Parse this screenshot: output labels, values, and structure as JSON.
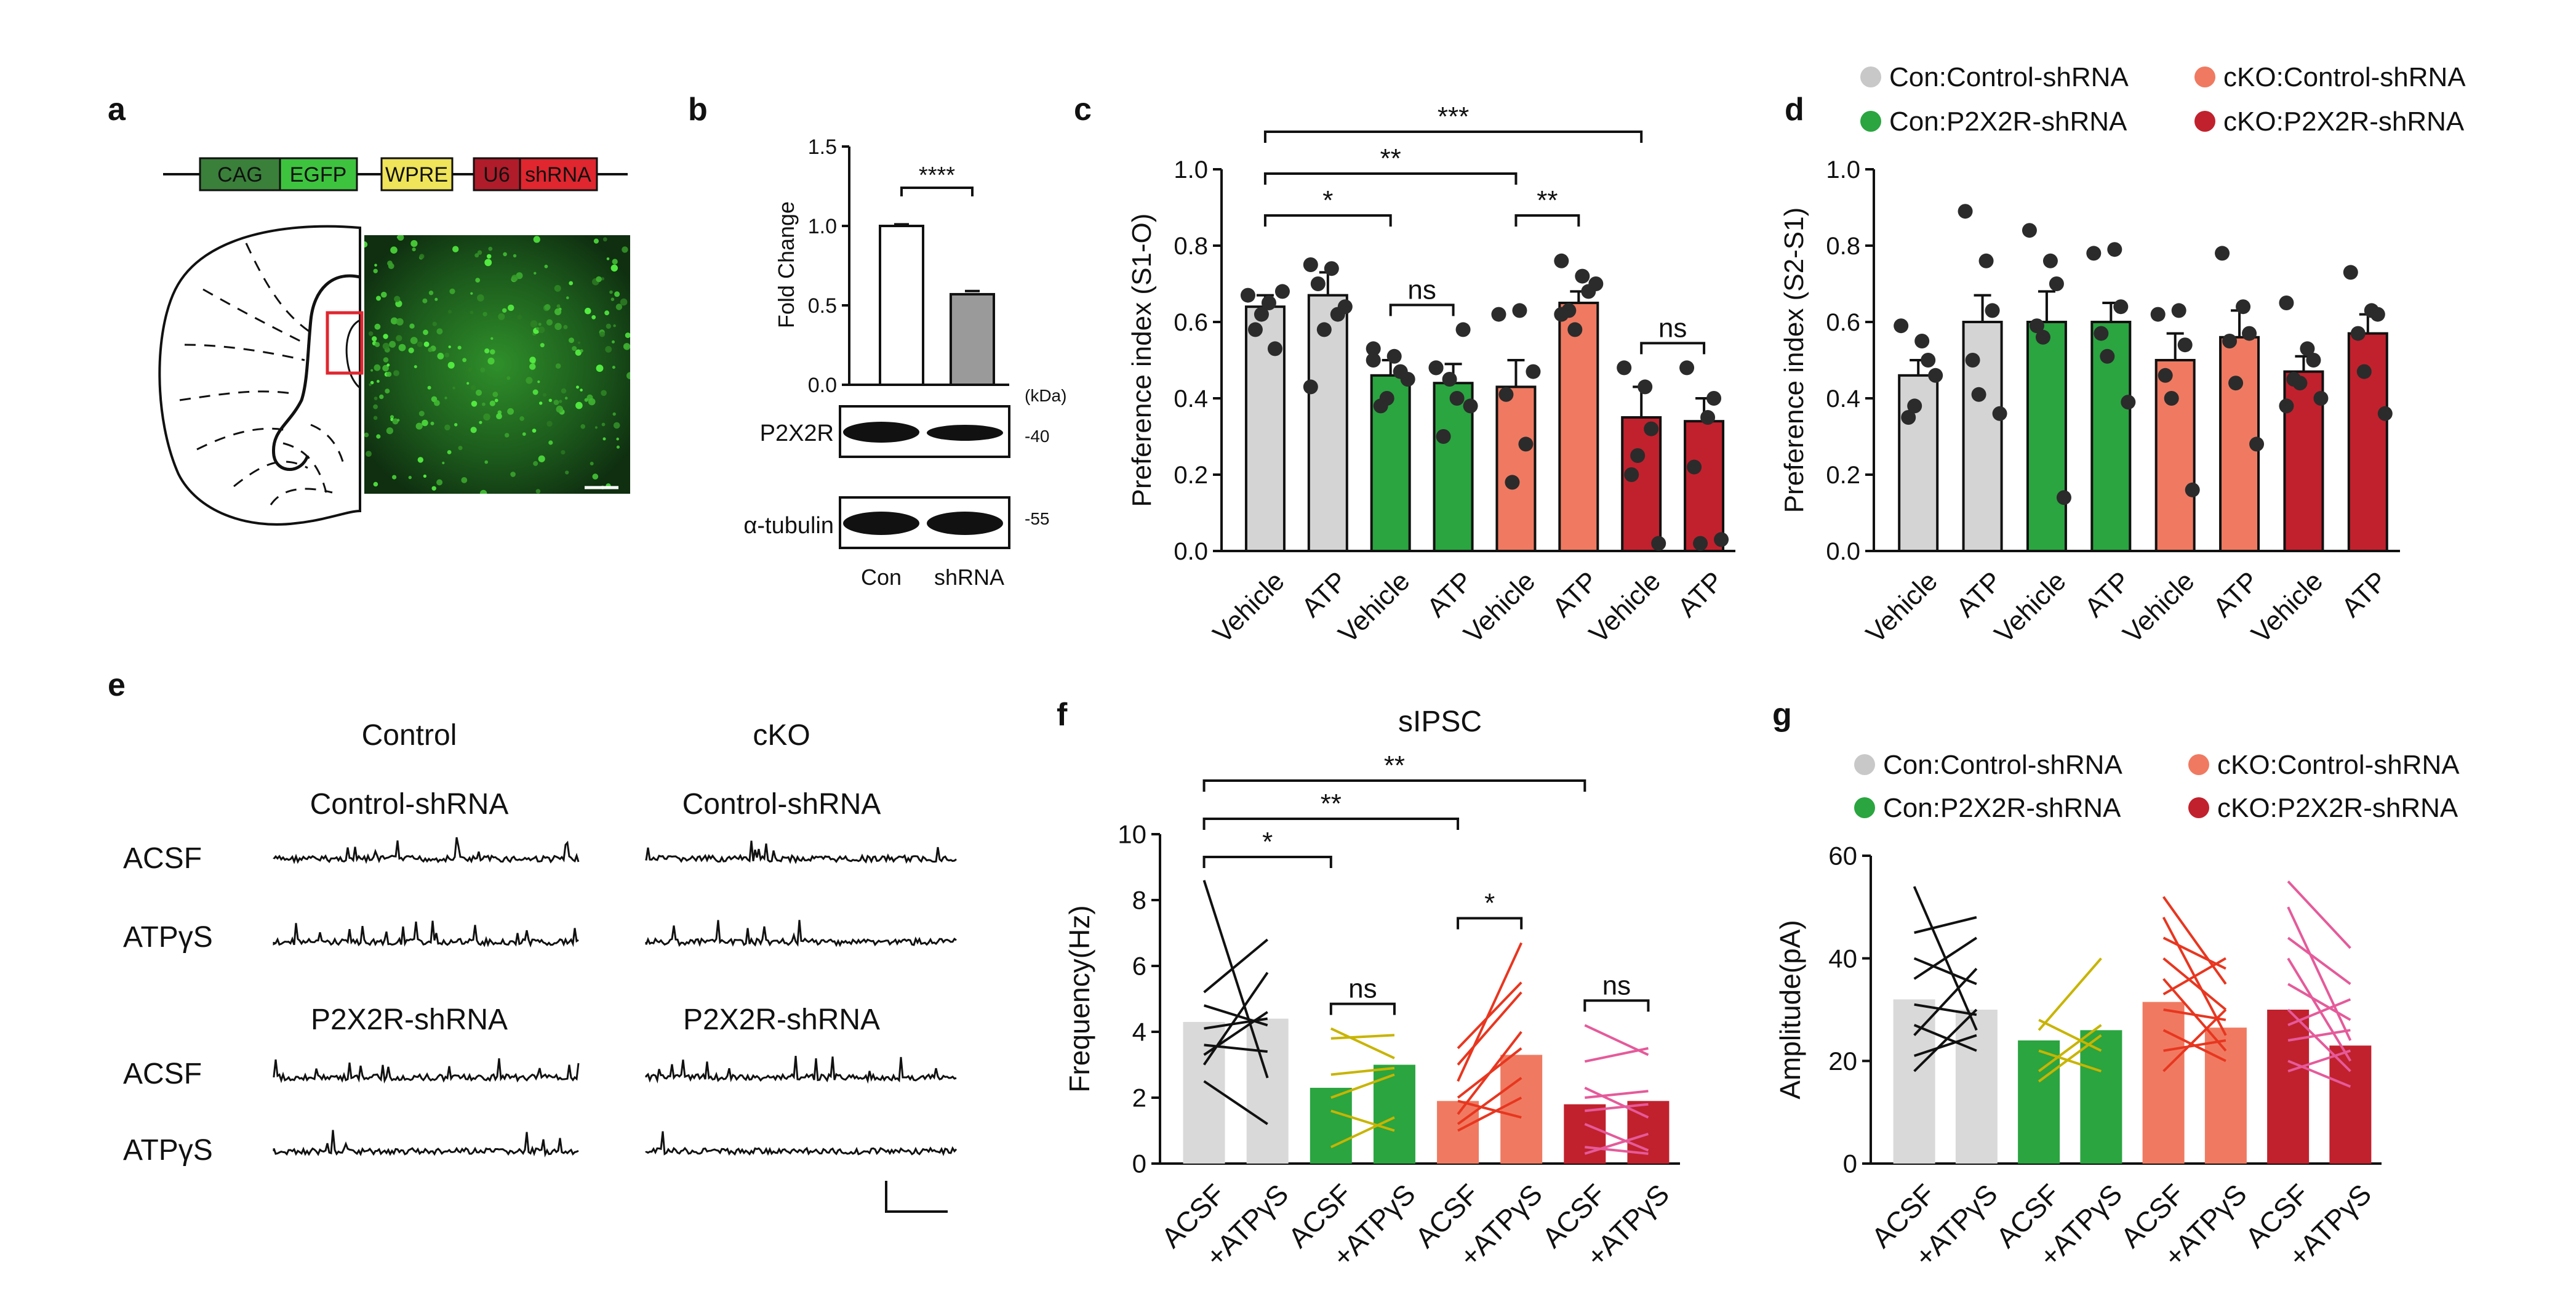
{
  "panel_labels": [
    "a",
    "b",
    "c",
    "d",
    "e",
    "f",
    "g"
  ],
  "colors": {
    "grey": "#d4d4d4",
    "green": "#2aa540",
    "salmon": "#ef7a61",
    "red": "#c1212d",
    "dot": "#2b2b2b",
    "egfp": "#3ec33e",
    "cag": "#3a7f3a",
    "wpre": "#efe45a",
    "u6": "#b01c2a",
    "shrna": "#e0262f"
  },
  "panel_a": {
    "constructs": [
      "CAG",
      "EGFP",
      "WPRE",
      "U6",
      "shRNA"
    ]
  },
  "panel_b": {
    "ylabel": "Fold Change",
    "yticks": [
      "1.5",
      "1.0",
      "0.5",
      "0.0"
    ],
    "significance": "****",
    "kda_label": "(kDa)",
    "bands": [
      {
        "label": "P2X2R",
        "kda": "-40"
      },
      {
        "label": "α-tubulin",
        "kda": "-55"
      }
    ],
    "xlabels": [
      "Con",
      "shRNA"
    ]
  },
  "legend_cd": [
    "Con:Control-shRNA",
    "Con:P2X2R-shRNA",
    "cKO:Control-shRNA",
    "cKO:P2X2R-shRNA"
  ],
  "legend_fg": [
    "Con:Control-shRNA",
    "Con:P2X2R-shRNA",
    "cKO:Control-shRNA",
    "cKO:P2X2R-shRNA"
  ],
  "panel_e": {
    "col_titles": [
      "Control",
      "cKO"
    ],
    "group_titles": [
      "Control-shRNA",
      "Control-shRNA",
      "P2X2R-shRNA",
      "P2X2R-shRNA"
    ],
    "row_labels": [
      "ACSF",
      "ATPγS",
      "ACSF",
      "ATPγS"
    ]
  },
  "chart_data": [
    {
      "id": "b",
      "type": "bar",
      "categories": [
        "Con",
        "shRNA"
      ],
      "values": [
        1.0,
        0.57
      ],
      "errors": [
        0.01,
        0.02
      ],
      "ylabel": "Fold Change",
      "ylim": [
        0,
        1.5
      ],
      "annotations": [
        "****"
      ]
    },
    {
      "id": "c",
      "type": "bar",
      "ylabel": "Preference index (S1-O)",
      "ylim": [
        0,
        1.0
      ],
      "yticks": [
        "0.0",
        "0.2",
        "0.4",
        "0.6",
        "0.8",
        "1.0"
      ],
      "categories": [
        "Vehicle",
        "ATP",
        "Vehicle",
        "ATP",
        "Vehicle",
        "ATP",
        "Vehicle",
        "ATP"
      ],
      "groups": [
        "Con:Control-shRNA",
        "Con:Control-shRNA",
        "Con:P2X2R-shRNA",
        "Con:P2X2R-shRNA",
        "cKO:Control-shRNA",
        "cKO:Control-shRNA",
        "cKO:P2X2R-shRNA",
        "cKO:P2X2R-shRNA"
      ],
      "values": [
        0.64,
        0.67,
        0.46,
        0.44,
        0.43,
        0.65,
        0.35,
        0.34
      ],
      "errors": [
        0.03,
        0.06,
        0.04,
        0.05,
        0.07,
        0.03,
        0.08,
        0.06
      ],
      "points": [
        [
          0.67,
          0.65,
          0.53,
          0.58,
          0.62,
          0.68
        ],
        [
          0.75,
          0.74,
          0.62,
          0.7,
          0.58,
          0.64,
          0.43
        ],
        [
          0.53,
          0.51,
          0.47,
          0.38,
          0.4,
          0.45,
          0.5
        ],
        [
          0.48,
          0.4,
          0.58,
          0.3,
          0.45,
          0.38,
          0.48
        ],
        [
          0.62,
          0.63,
          0.28,
          0.41,
          0.18,
          0.47
        ],
        [
          0.76,
          0.72,
          0.68,
          0.63,
          0.58,
          0.7,
          0.62
        ],
        [
          0.48,
          0.43,
          0.32,
          0.2,
          0.25,
          0.02
        ],
        [
          0.48,
          0.35,
          0.4,
          0.22,
          0.02,
          0.03
        ]
      ],
      "annotations": [
        {
          "text": "*",
          "from": 0,
          "to": 2,
          "level": 1
        },
        {
          "text": "**",
          "from": 0,
          "to": 4,
          "level": 2
        },
        {
          "text": "***",
          "from": 0,
          "to": 6,
          "level": 3
        },
        {
          "text": "ns",
          "from": 2,
          "to": 3,
          "level": 0
        },
        {
          "text": "**",
          "from": 4,
          "to": 5,
          "level": 1
        },
        {
          "text": "ns",
          "from": 6,
          "to": 7,
          "level": 0
        }
      ]
    },
    {
      "id": "d",
      "type": "bar",
      "ylabel": "Preference index (S2-S1)",
      "ylim": [
        0,
        1.0
      ],
      "yticks": [
        "0.0",
        "0.2",
        "0.4",
        "0.6",
        "0.8",
        "1.0"
      ],
      "categories": [
        "Vehicle",
        "ATP",
        "Vehicle",
        "ATP",
        "Vehicle",
        "ATP",
        "Vehicle",
        "ATP"
      ],
      "groups": [
        "Con:Control-shRNA",
        "Con:Control-shRNA",
        "Con:P2X2R-shRNA",
        "Con:P2X2R-shRNA",
        "cKO:Control-shRNA",
        "cKO:Control-shRNA",
        "cKO:P2X2R-shRNA",
        "cKO:P2X2R-shRNA"
      ],
      "values": [
        0.46,
        0.6,
        0.6,
        0.6,
        0.5,
        0.56,
        0.47,
        0.57
      ],
      "errors": [
        0.04,
        0.07,
        0.08,
        0.05,
        0.07,
        0.07,
        0.04,
        0.05
      ],
      "points": [
        [
          0.59,
          0.55,
          0.5,
          0.35,
          0.38,
          0.46
        ],
        [
          0.89,
          0.76,
          0.63,
          0.5,
          0.41,
          0.36
        ],
        [
          0.84,
          0.76,
          0.7,
          0.59,
          0.56,
          0.14
        ],
        [
          0.78,
          0.79,
          0.64,
          0.57,
          0.51,
          0.39
        ],
        [
          0.62,
          0.63,
          0.54,
          0.46,
          0.4,
          0.16
        ],
        [
          0.78,
          0.64,
          0.57,
          0.55,
          0.44,
          0.28
        ],
        [
          0.65,
          0.53,
          0.5,
          0.45,
          0.44,
          0.4,
          0.38
        ],
        [
          0.73,
          0.63,
          0.62,
          0.57,
          0.47,
          0.36
        ]
      ],
      "annotations": []
    },
    {
      "id": "f",
      "type": "bar",
      "title": "sIPSC",
      "ylabel": "Frequency(Hz)",
      "ylim": [
        0,
        10
      ],
      "yticks": [
        "0",
        "2",
        "4",
        "6",
        "8",
        "10"
      ],
      "categories": [
        "ACSF",
        "+ATPγS",
        "ACSF",
        "+ATPγS",
        "ACSF",
        "+ATPγS",
        "ACSF",
        "+ATPγS"
      ],
      "groups": [
        "Con:Control-shRNA",
        "Con:Control-shRNA",
        "Con:P2X2R-shRNA",
        "Con:P2X2R-shRNA",
        "cKO:Control-shRNA",
        "cKO:Control-shRNA",
        "cKO:P2X2R-shRNA",
        "cKO:P2X2R-shRNA"
      ],
      "values": [
        4.3,
        4.4,
        2.3,
        3.0,
        1.9,
        3.3,
        1.8,
        1.9
      ],
      "paired_lines": [
        [
          [
            8.6,
            2.6
          ],
          [
            5.2,
            6.8
          ],
          [
            4.1,
            4.4
          ],
          [
            3.6,
            3.4
          ],
          [
            3.0,
            5.8
          ],
          [
            2.5,
            1.2
          ],
          [
            4.8,
            4.2
          ],
          [
            3.3,
            4.6
          ]
        ],
        [
          [
            4.1,
            3.2
          ],
          [
            3.8,
            3.9
          ],
          [
            2.7,
            2.9
          ],
          [
            2.0,
            2.7
          ],
          [
            1.6,
            1.0
          ],
          [
            0.5,
            1.4
          ]
        ],
        [
          [
            3.0,
            5.2
          ],
          [
            2.5,
            6.7
          ],
          [
            2.0,
            3.5
          ],
          [
            1.5,
            4.0
          ],
          [
            1.2,
            2.6
          ],
          [
            1.0,
            2.0
          ],
          [
            1.9,
            1.4
          ],
          [
            3.5,
            5.5
          ]
        ],
        [
          [
            4.2,
            3.3
          ],
          [
            3.1,
            3.5
          ],
          [
            2.3,
            1.4
          ],
          [
            2.0,
            2.2
          ],
          [
            1.6,
            1.8
          ],
          [
            1.2,
            0.4
          ],
          [
            0.3,
            0.9
          ],
          [
            0.5,
            0.3
          ]
        ]
      ],
      "annotations": [
        {
          "text": "*",
          "from": 0,
          "to": 2,
          "level": 1
        },
        {
          "text": "**",
          "from": 0,
          "to": 4,
          "level": 2
        },
        {
          "text": "**",
          "from": 0,
          "to": 6,
          "level": 3
        },
        {
          "text": "ns",
          "from": 2,
          "to": 3,
          "level": 0
        },
        {
          "text": "*",
          "from": 4,
          "to": 5,
          "level": 0
        },
        {
          "text": "ns",
          "from": 6,
          "to": 7,
          "level": 0
        }
      ]
    },
    {
      "id": "g",
      "type": "bar",
      "ylabel": "Amplitude(pA)",
      "ylim": [
        0,
        60
      ],
      "yticks": [
        "0",
        "20",
        "40",
        "60"
      ],
      "categories": [
        "ACSF",
        "+ATPγS",
        "ACSF",
        "+ATPγS",
        "ACSF",
        "+ATPγS",
        "ACSF",
        "+ATPγS"
      ],
      "groups": [
        "Con:Control-shRNA",
        "Con:Control-shRNA",
        "Con:P2X2R-shRNA",
        "Con:P2X2R-shRNA",
        "cKO:Control-shRNA",
        "cKO:Control-shRNA",
        "cKO:P2X2R-shRNA",
        "cKO:P2X2R-shRNA"
      ],
      "values": [
        32,
        30,
        24,
        26,
        31.5,
        26.5,
        30,
        23
      ],
      "paired_lines": [
        [
          [
            54,
            26
          ],
          [
            45,
            48
          ],
          [
            40,
            35
          ],
          [
            36,
            44
          ],
          [
            31,
            29
          ],
          [
            27,
            22
          ],
          [
            25,
            38
          ],
          [
            21,
            25
          ],
          [
            18,
            30
          ]
        ],
        [
          [
            28,
            22
          ],
          [
            26,
            40
          ],
          [
            22,
            18
          ],
          [
            18,
            27
          ],
          [
            16,
            25
          ]
        ],
        [
          [
            52,
            35
          ],
          [
            48,
            25
          ],
          [
            44,
            38
          ],
          [
            40,
            30
          ],
          [
            36,
            22
          ],
          [
            33,
            40
          ],
          [
            30,
            28
          ],
          [
            26,
            20
          ],
          [
            22,
            24
          ],
          [
            18,
            30
          ]
        ],
        [
          [
            55,
            42
          ],
          [
            50,
            24
          ],
          [
            44,
            35
          ],
          [
            40,
            20
          ],
          [
            35,
            28
          ],
          [
            30,
            18
          ],
          [
            27,
            32
          ],
          [
            24,
            26
          ],
          [
            20,
            15
          ],
          [
            18,
            22
          ]
        ]
      ],
      "annotations": []
    }
  ]
}
